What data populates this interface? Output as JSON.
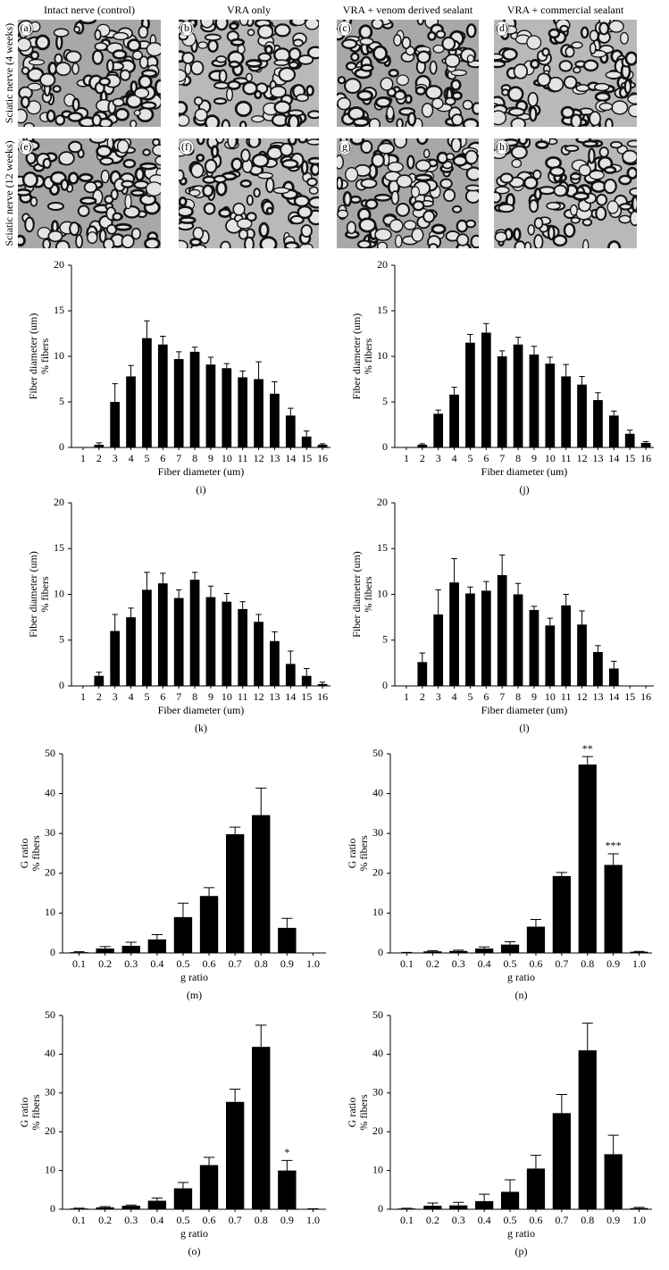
{
  "micrographs": {
    "columns": [
      "Intact nerve (control)",
      "VRA only",
      "VRA + venom derived sealant",
      "VRA + commercial sealant"
    ],
    "rows": [
      "Sciatic nerve (4 weeks)",
      "Sciatic nerve (12 weeks)"
    ],
    "panels": [
      "(a)",
      "(b)",
      "(c)",
      "(d)",
      "(e)",
      "(f)",
      "(g)",
      "(h)"
    ]
  },
  "chart_data": [
    {
      "type": "bar",
      "y_label": [
        "Fiber diameter (um)",
        "% fibers"
      ],
      "x_label": "Fiber diameter (um)",
      "caption": "(i)",
      "categories": [
        "1",
        "2",
        "3",
        "4",
        "5",
        "6",
        "7",
        "8",
        "9",
        "10",
        "11",
        "12",
        "13",
        "14",
        "15",
        "16"
      ],
      "series": [
        {
          "color": "#000000",
          "values": [
            0,
            0.3,
            5.0,
            7.8,
            12.0,
            11.3,
            9.7,
            10.5,
            9.1,
            8.7,
            7.7,
            7.5,
            5.9,
            3.5,
            1.2,
            0.3
          ],
          "errors": [
            0,
            0.2,
            2.0,
            1.2,
            1.9,
            0.9,
            0.8,
            0.5,
            0.8,
            0.5,
            0.7,
            1.9,
            1.3,
            0.8,
            0.6,
            0.1
          ]
        }
      ],
      "ylim": [
        0,
        20
      ],
      "yticks": [
        0,
        5,
        10,
        15,
        20
      ]
    },
    {
      "type": "bar",
      "y_label": [
        "Fiber diameter (um)",
        "% fibers"
      ],
      "x_label": "Fiber diameter (um)",
      "caption": "(j)",
      "categories": [
        "1",
        "2",
        "3",
        "4",
        "5",
        "6",
        "7",
        "8",
        "9",
        "10",
        "11",
        "12",
        "13",
        "14",
        "15",
        "16"
      ],
      "series": [
        {
          "color": "#000000",
          "values": [
            0,
            0.3,
            3.7,
            5.8,
            11.5,
            12.6,
            10.0,
            11.3,
            10.2,
            9.2,
            7.8,
            6.9,
            5.2,
            3.5,
            1.5,
            0.5
          ],
          "errors": [
            0,
            0.1,
            0.4,
            0.8,
            0.9,
            1.0,
            0.6,
            0.8,
            0.9,
            0.7,
            1.3,
            0.9,
            0.8,
            0.5,
            0.4,
            0.15
          ]
        }
      ],
      "ylim": [
        0,
        20
      ],
      "yticks": [
        0,
        5,
        10,
        15,
        20
      ]
    },
    {
      "type": "bar",
      "y_label": [
        "Fiber diameter (um)",
        "% fibers"
      ],
      "x_label": "Fiber diameter (um)",
      "caption": "(k)",
      "categories": [
        "1",
        "2",
        "3",
        "4",
        "5",
        "6",
        "7",
        "8",
        "9",
        "10",
        "11",
        "12",
        "13",
        "14",
        "15",
        "16"
      ],
      "series": [
        {
          "color": "#000000",
          "values": [
            0,
            1.1,
            6.0,
            7.5,
            10.5,
            11.2,
            9.6,
            11.6,
            9.7,
            9.2,
            8.4,
            7.0,
            4.9,
            2.4,
            1.1,
            0.2
          ],
          "errors": [
            0,
            0.4,
            1.8,
            1.0,
            1.9,
            1.1,
            0.9,
            0.8,
            1.2,
            0.9,
            0.8,
            0.8,
            1.0,
            1.4,
            0.8,
            0.2
          ]
        }
      ],
      "ylim": [
        0,
        20
      ],
      "yticks": [
        0,
        5,
        10,
        15,
        20
      ]
    },
    {
      "type": "bar",
      "y_label": [
        "Fiber diameter (um)",
        "% fibers"
      ],
      "x_label": "Fiber diameter (um)",
      "caption": "(l)",
      "categories": [
        "1",
        "2",
        "3",
        "4",
        "5",
        "6",
        "7",
        "8",
        "9",
        "10",
        "11",
        "12",
        "13",
        "14",
        "15",
        "16"
      ],
      "series": [
        {
          "color": "#000000",
          "values": [
            0,
            2.6,
            7.8,
            11.3,
            10.1,
            10.4,
            12.1,
            10.0,
            8.3,
            6.6,
            8.8,
            6.7,
            3.7,
            1.9,
            0,
            0
          ],
          "errors": [
            0,
            1.0,
            2.7,
            2.6,
            0.7,
            1.0,
            2.2,
            1.2,
            0.4,
            0.8,
            1.2,
            1.5,
            0.7,
            0.8,
            0,
            0
          ]
        }
      ],
      "ylim": [
        0,
        20
      ],
      "yticks": [
        0,
        5,
        10,
        15,
        20
      ]
    },
    {
      "type": "bar",
      "y_label": [
        "G ratio",
        "% fibers"
      ],
      "x_label": "g ratio",
      "caption": "(m)",
      "categories": [
        "0.1",
        "0.2",
        "0.3",
        "0.4",
        "0.5",
        "0.6",
        "0.7",
        "0.8",
        "0.9",
        "1.0"
      ],
      "series": [
        {
          "color": "#000000",
          "values": [
            0.2,
            1.1,
            1.8,
            3.4,
            9.0,
            14.3,
            29.8,
            34.6,
            6.3,
            0
          ],
          "errors": [
            0.1,
            0.5,
            0.9,
            1.2,
            3.5,
            2.1,
            1.8,
            6.8,
            2.4,
            0
          ]
        }
      ],
      "ylim": [
        0,
        50
      ],
      "yticks": [
        0,
        10,
        20,
        30,
        40,
        50
      ]
    },
    {
      "type": "bar",
      "y_label": [
        "G ratio",
        "% fibers"
      ],
      "x_label": "g ratio",
      "caption": "(n)",
      "categories": [
        "0.1",
        "0.2",
        "0.3",
        "0.4",
        "0.5",
        "0.6",
        "0.7",
        "0.8",
        "0.9",
        "1.0"
      ],
      "series": [
        {
          "color": "#000000",
          "values": [
            0.1,
            0.4,
            0.5,
            1.1,
            2.1,
            6.6,
            19.3,
            47.3,
            22.1,
            0.3
          ],
          "errors": [
            0.05,
            0.2,
            0.2,
            0.4,
            0.7,
            1.8,
            0.9,
            2.0,
            2.8,
            0.1
          ]
        }
      ],
      "annotations": [
        {
          "text": "**",
          "category": "0.8"
        },
        {
          "text": "***",
          "category": "0.9"
        }
      ],
      "ylim": [
        0,
        50
      ],
      "yticks": [
        0,
        10,
        20,
        30,
        40,
        50
      ]
    },
    {
      "type": "bar",
      "y_label": [
        "G ratio",
        "% fibers"
      ],
      "x_label": "g ratio",
      "caption": "(o)",
      "categories": [
        "0.1",
        "0.2",
        "0.3",
        "0.4",
        "0.5",
        "0.6",
        "0.7",
        "0.8",
        "0.9",
        "1.0"
      ],
      "series": [
        {
          "color": "#000000",
          "values": [
            0.2,
            0.5,
            0.9,
            2.2,
            5.4,
            11.4,
            27.7,
            41.9,
            10.0,
            0.1
          ],
          "errors": [
            0.1,
            0.2,
            0.2,
            0.7,
            1.5,
            2.0,
            3.3,
            5.6,
            2.6,
            0.05
          ]
        }
      ],
      "annotations": [
        {
          "text": "*",
          "category": "0.9"
        }
      ],
      "ylim": [
        0,
        50
      ],
      "yticks": [
        0,
        10,
        20,
        30,
        40,
        50
      ]
    },
    {
      "type": "bar",
      "y_label": [
        "G ratio",
        "% fibers"
      ],
      "x_label": "g ratio",
      "caption": "(p)",
      "categories": [
        "0.1",
        "0.2",
        "0.3",
        "0.4",
        "0.5",
        "0.6",
        "0.7",
        "0.8",
        "0.9",
        "1.0"
      ],
      "series": [
        {
          "color": "#000000",
          "values": [
            0.2,
            0.9,
            1.0,
            2.1,
            4.5,
            10.5,
            24.8,
            41.0,
            14.2,
            0.3
          ],
          "errors": [
            0.05,
            0.7,
            0.8,
            1.8,
            3.1,
            3.4,
            4.8,
            7.0,
            4.9,
            0.2
          ]
        }
      ],
      "ylim": [
        0,
        50
      ],
      "yticks": [
        0,
        10,
        20,
        30,
        40,
        50
      ]
    }
  ]
}
